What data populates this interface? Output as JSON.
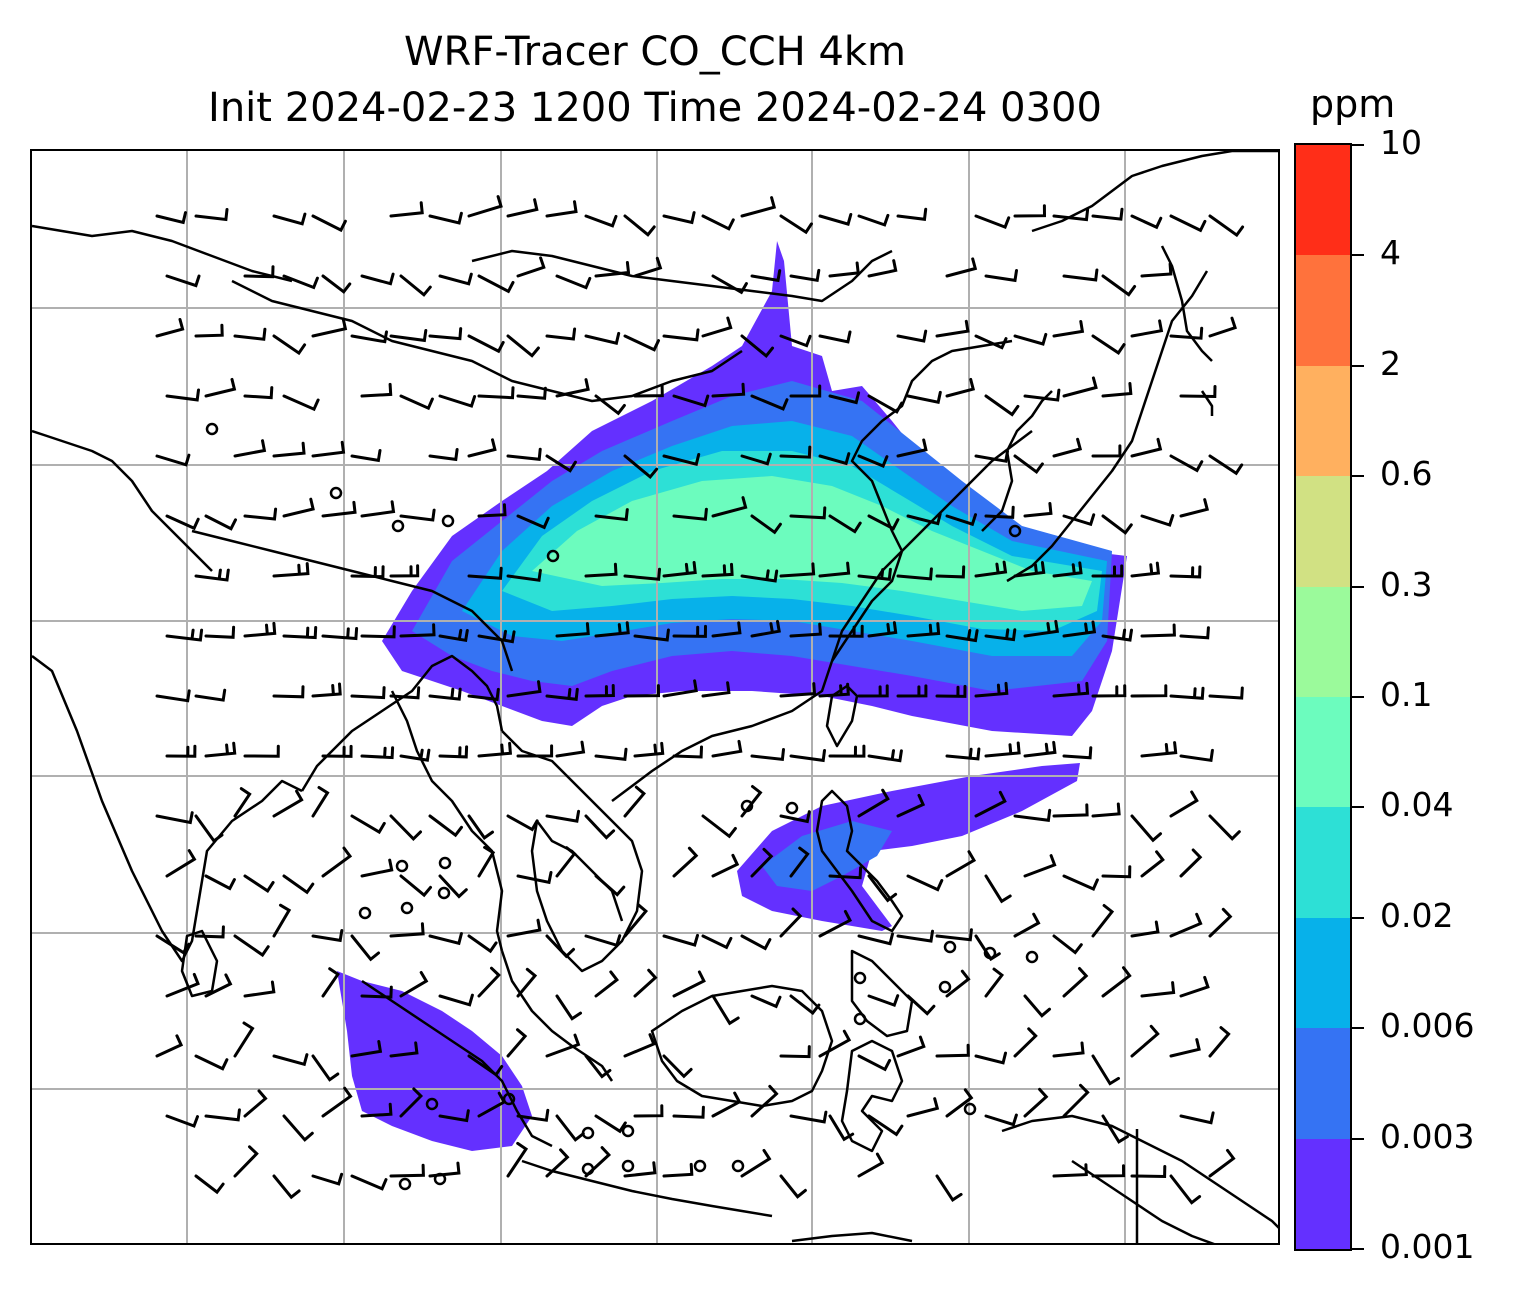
{
  "title": {
    "line1": "WRF-Tracer CO_CCH 4km",
    "line2": "Init 2024-02-23 1200 Time 2024-02-24 0300"
  },
  "colorbar": {
    "unit": "ppm",
    "levels": [
      "0.001",
      "0.003",
      "0.006",
      "0.02",
      "0.04",
      "0.1",
      "0.3",
      "0.6",
      "2",
      "4",
      "10"
    ],
    "colors": [
      "#6430ff",
      "#3573f3",
      "#07b1ea",
      "#2de0d6",
      "#6cfcbe",
      "#9bfa9b",
      "#d1e183",
      "#ffb05f",
      "#ff723c",
      "#ff2e18"
    ]
  },
  "map": {
    "gridlines": true,
    "plume_colors": {
      "outer": "#6430ff",
      "mid1": "#3573f3",
      "mid2": "#07b1ea",
      "mid3": "#2de0d6",
      "core": "#6cfcbe"
    }
  }
}
